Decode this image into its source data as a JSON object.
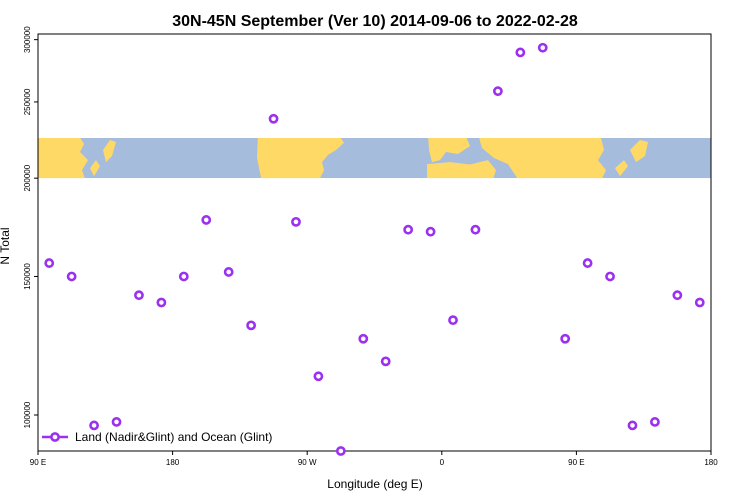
{
  "chart_data": {
    "type": "scatter",
    "title": "30N-45N September (Ver 10)   2014-09-06 to 2022-02-28",
    "xlabel": "Longitude (deg E)",
    "ylabel": "N Total",
    "x_ticks": [
      {
        "value": 90,
        "label": "90 E"
      },
      {
        "value": 180,
        "label": "180"
      },
      {
        "value": 270,
        "label": "90 W"
      },
      {
        "value": 360,
        "label": "0"
      },
      {
        "value": 450,
        "label": "90 E"
      },
      {
        "value": 540,
        "label": "180"
      }
    ],
    "y_ticks": [
      {
        "value": 100000,
        "label": "100000"
      },
      {
        "value": 150000,
        "label": "150000"
      },
      {
        "value": 200000,
        "label": "200000"
      },
      {
        "value": 250000,
        "label": "250000"
      },
      {
        "value": 300000,
        "label": "300000"
      }
    ],
    "xlim": [
      90,
      540
    ],
    "ylim": [
      90000,
      305000
    ],
    "y_scale": "log",
    "grid": false,
    "legend_position": "bottom-left",
    "map_band": {
      "y_range": [
        200000,
        225000
      ],
      "land_color": "#FFD966",
      "ocean_color": "#A6BCDC"
    },
    "series": [
      {
        "name": "Land (Nadir&Glint) and Ocean (Glint)",
        "color": "#9B30F0",
        "x": [
          97.5,
          112.5,
          127.5,
          142.5,
          157.5,
          172.5,
          187.5,
          202.5,
          217.5,
          232.5,
          247.5,
          262.5,
          277.5,
          292.5,
          307.5,
          322.5,
          337.5,
          352.5,
          367.5,
          382.5,
          397.5,
          412.5,
          427.5,
          442.5,
          457.5,
          472.5,
          487.5,
          502.5,
          517.5,
          532.5
        ],
        "y": [
          156000,
          150000,
          97000,
          98000,
          142000,
          139000,
          150000,
          177000,
          152000,
          130000,
          238000,
          176000,
          112000,
          90000,
          125000,
          117000,
          172000,
          171000,
          132000,
          172000,
          258000,
          289000,
          293000,
          125000,
          156000,
          150000,
          97000,
          98000,
          142000,
          139000
        ]
      }
    ]
  }
}
